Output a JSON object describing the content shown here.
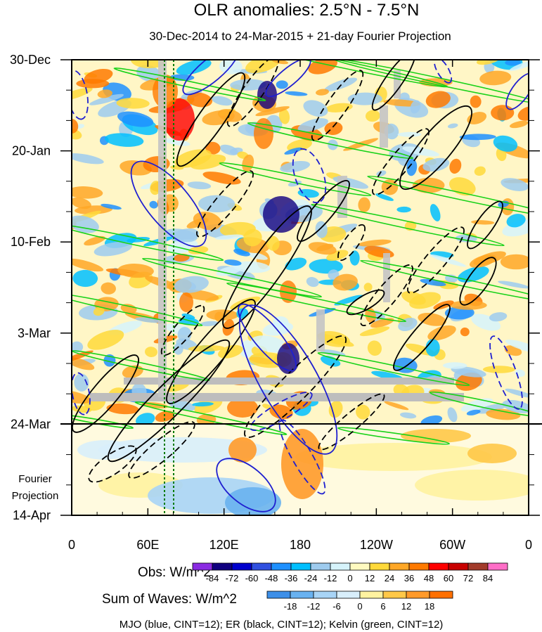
{
  "chart_data": {
    "type": "heatmap",
    "title": "OLR anomalies: 2.5°N - 7.5°N",
    "subtitle": "30-Dec-2014 to 24-Mar-2015 + 21-day Fourier Projection",
    "x_tick_labels": [
      "0",
      "60E",
      "120E",
      "180",
      "120W",
      "60W",
      "0"
    ],
    "x_ticks_lon": [
      0,
      60,
      120,
      180,
      240,
      300,
      360
    ],
    "y_tick_labels": [
      "30-Dec",
      "20-Jan",
      "10-Feb",
      "3-Mar",
      "24-Mar",
      "14-Apr"
    ],
    "y_ticks_day": [
      0,
      21,
      42,
      63,
      84,
      105
    ],
    "projection_label": [
      "Fourier",
      "Projection"
    ],
    "projection_start_day": 84,
    "obs_colorbar": {
      "label": "Obs: W/m^2",
      "levels": [
        "-84",
        "-72",
        "-60",
        "-48",
        "-36",
        "-24",
        "-12",
        "0",
        "12",
        "24",
        "36",
        "48",
        "60",
        "72",
        "84"
      ],
      "colors": [
        "#8a2be2",
        "#10007f",
        "#0000cd",
        "#3050e0",
        "#1e90ff",
        "#00bfff",
        "#9ecbee",
        "#d6f3fb",
        "#fffac0",
        "#ffd93a",
        "#ffa726",
        "#ff7a00",
        "#ff0000",
        "#c80000",
        "#a23b2b",
        "#ff6ec7"
      ]
    },
    "waves_colorbar": {
      "label": "Sum of Waves: W/m^2",
      "levels": [
        "-18",
        "-12",
        "-6",
        "0",
        "6",
        "12",
        "18"
      ],
      "colors": [
        "#3d8fe8",
        "#69b2f0",
        "#a8d4f6",
        "#d8eefb",
        "#fff2a0",
        "#ffc848",
        "#ff9a2a",
        "#ff7000"
      ]
    },
    "footnote": "MJO (blue, CINT=12); ER (black, CINT=12); Kelvin (green, CINT=12)",
    "contour_series": [
      {
        "name": "MJO",
        "color": "#1f1fd0"
      },
      {
        "name": "ER",
        "color": "#000000"
      },
      {
        "name": "Kelvin",
        "color": "#19d219"
      }
    ]
  }
}
